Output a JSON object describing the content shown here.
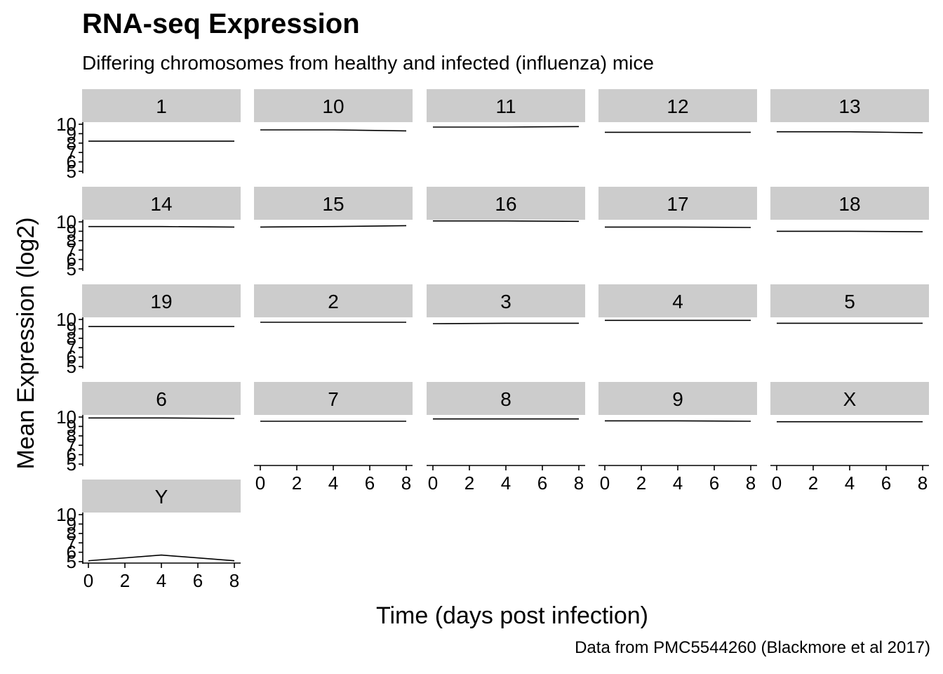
{
  "chart_data": {
    "type": "line",
    "title": "RNA-seq Expression",
    "subtitle": "Differing chromosomes from healthy and infected (influenza) mice",
    "caption": "Data from PMC5544260 (Blackmore et al 2017)",
    "xlabel": "Time (days post infection)",
    "ylabel": "Mean Expression (log2)",
    "x": [
      0,
      4,
      8
    ],
    "xlim": [
      0,
      8
    ],
    "ylim": [
      5,
      10
    ],
    "xticks": [
      0,
      2,
      4,
      6,
      8
    ],
    "yticks": [
      5,
      6,
      7,
      8,
      9,
      10
    ],
    "facet_ncol": 5,
    "grid": false,
    "series": [
      {
        "name": "1",
        "values": [
          8.2,
          8.2,
          8.2
        ]
      },
      {
        "name": "10",
        "values": [
          9.4,
          9.4,
          9.3
        ]
      },
      {
        "name": "11",
        "values": [
          9.7,
          9.7,
          9.75
        ]
      },
      {
        "name": "12",
        "values": [
          9.15,
          9.15,
          9.15
        ]
      },
      {
        "name": "13",
        "values": [
          9.2,
          9.2,
          9.1
        ]
      },
      {
        "name": "14",
        "values": [
          9.5,
          9.5,
          9.45
        ]
      },
      {
        "name": "15",
        "values": [
          9.45,
          9.5,
          9.6
        ]
      },
      {
        "name": "16",
        "values": [
          10.1,
          10.1,
          10.05
        ]
      },
      {
        "name": "17",
        "values": [
          9.45,
          9.45,
          9.4
        ]
      },
      {
        "name": "18",
        "values": [
          9.0,
          9.0,
          8.95
        ]
      },
      {
        "name": "19",
        "values": [
          9.25,
          9.25,
          9.25
        ]
      },
      {
        "name": "2",
        "values": [
          9.7,
          9.7,
          9.7
        ]
      },
      {
        "name": "3",
        "values": [
          9.55,
          9.6,
          9.6
        ]
      },
      {
        "name": "4",
        "values": [
          9.9,
          9.9,
          9.9
        ]
      },
      {
        "name": "5",
        "values": [
          9.6,
          9.6,
          9.6
        ]
      },
      {
        "name": "6",
        "values": [
          9.9,
          9.9,
          9.85
        ]
      },
      {
        "name": "7",
        "values": [
          9.55,
          9.55,
          9.55
        ]
      },
      {
        "name": "8",
        "values": [
          9.8,
          9.8,
          9.8
        ]
      },
      {
        "name": "9",
        "values": [
          9.6,
          9.6,
          9.55
        ]
      },
      {
        "name": "X",
        "values": [
          9.5,
          9.5,
          9.5
        ]
      },
      {
        "name": "Y",
        "values": [
          5.1,
          5.7,
          5.1
        ]
      }
    ]
  }
}
